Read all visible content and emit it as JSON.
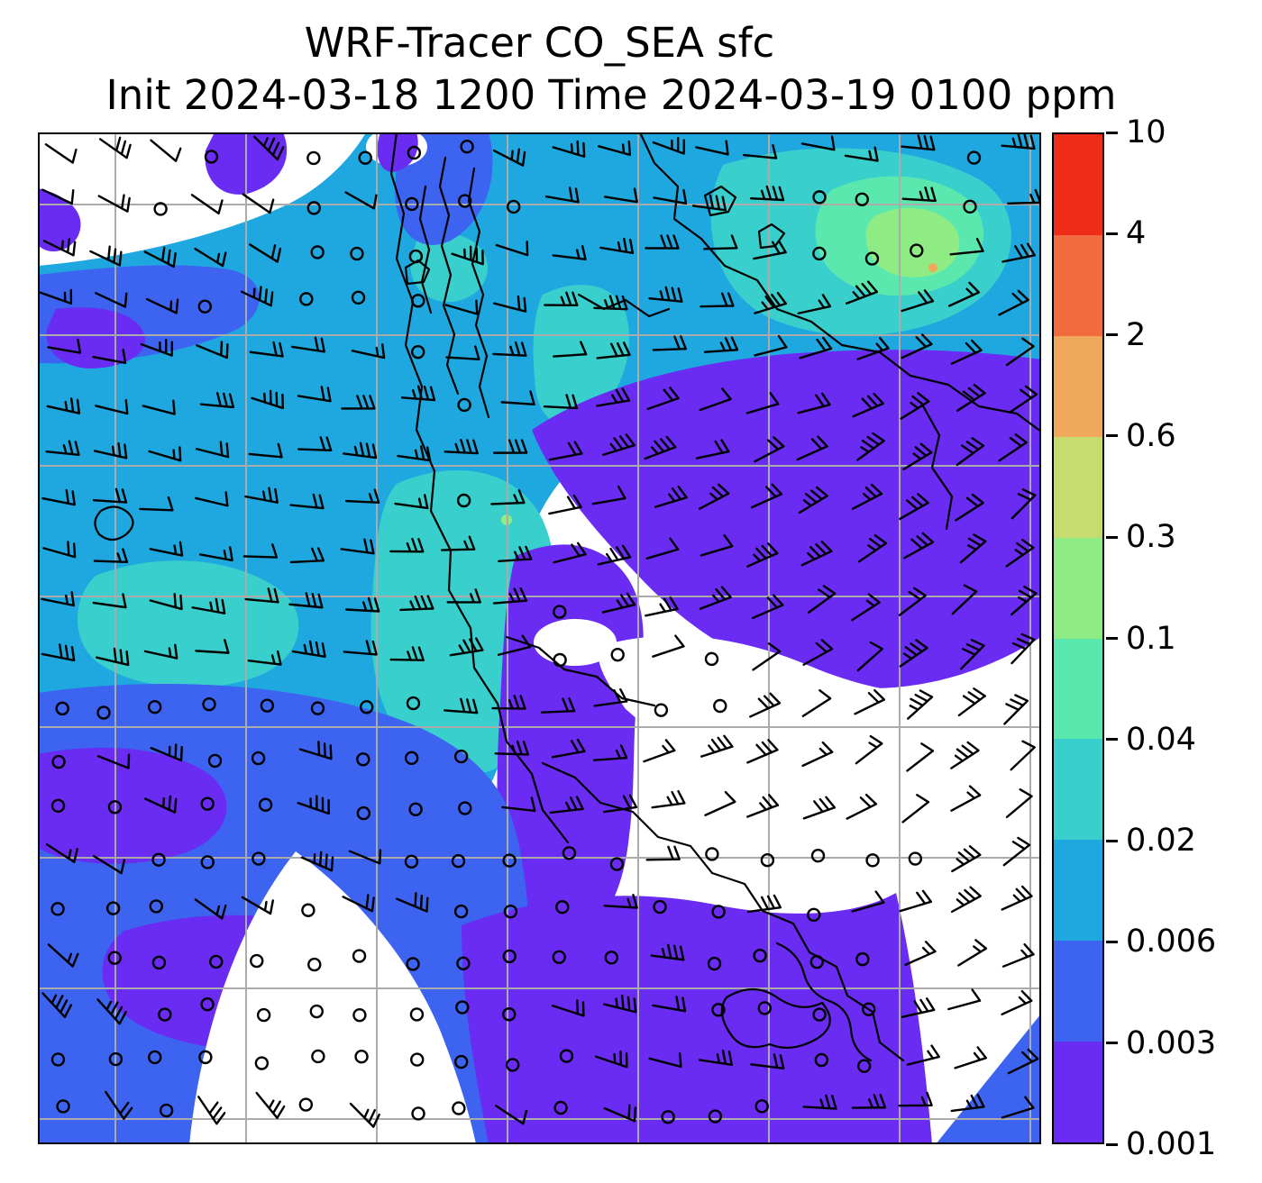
{
  "figure": {
    "title": "WRF-Tracer CO_SEA sfc",
    "subtitle": "Init 2024-03-18 1200 Time 2024-03-19 0100 ppm"
  },
  "chart_data": {
    "type": "heatmap",
    "title": "WRF-Tracer CO_SEA sfc",
    "subtitle": "Init 2024-03-18 1200 Time 2024-03-19 0100 ppm",
    "model": "WRF-Tracer",
    "variable": "CO_SEA",
    "level": "sfc",
    "units": "ppm",
    "init_time": "2024-03-18 1200",
    "valid_time": "2024-03-19 0100",
    "colorbar": {
      "orientation": "vertical",
      "side": "right",
      "levels": [
        0.001,
        0.003,
        0.006,
        0.02,
        0.04,
        0.1,
        0.3,
        0.6,
        2,
        4,
        10
      ],
      "tick_labels": [
        "0.001",
        "0.003",
        "0.006",
        "0.02",
        "0.04",
        "0.1",
        "0.3",
        "0.6",
        "2",
        "4",
        "10"
      ],
      "colors_bottom_to_top": [
        "#6A2BF2",
        "#3C64F0",
        "#1FA8E0",
        "#38CFCC",
        "#5BE8AE",
        "#8FEC85",
        "#C6DC6E",
        "#F0A95C",
        "#F26B3F",
        "#EF2C17"
      ]
    },
    "field_summary": {
      "white_regions_ppm": "< 0.001",
      "purple_regions_ppm": "0.001-0.003",
      "blue_regions_ppm": "0.003-0.006",
      "dominant_cyan_left_center_ppm": "0.006-0.02",
      "turquoise_patches_ppm": "0.02-0.04",
      "top_right_maxima_ppm": "0.04-0.3"
    },
    "overlays": [
      "wind barbs",
      "calm-wind circles",
      "coastlines",
      "lat-lon grid"
    ],
    "grid": true
  },
  "map": {
    "background": "#FFFFFF",
    "grid_color": "#ABABAB",
    "coast_color": "#000000",
    "barb_color": "#000000",
    "border_color": "#000000"
  }
}
